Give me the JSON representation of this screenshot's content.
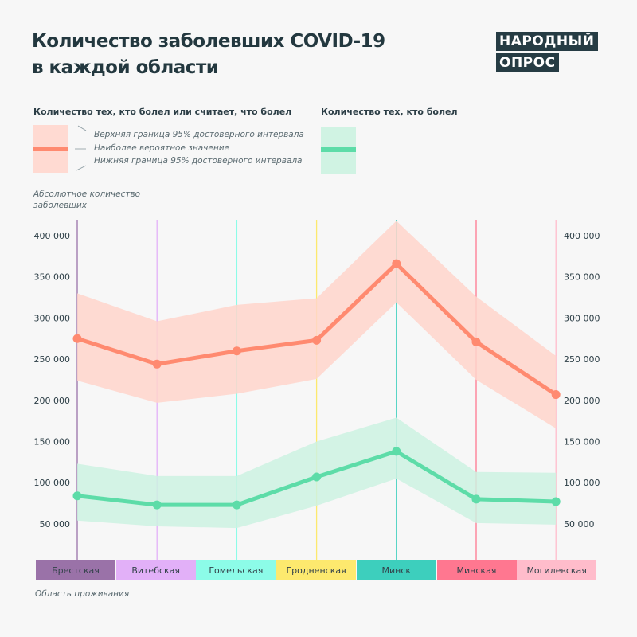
{
  "title_line1": "Количество заболевших COVID-19",
  "title_line2": "в каждой области",
  "logo": [
    "НАРОДНЫЙ",
    "ОПРОС"
  ],
  "legend": {
    "red_heading": "Количество тех, кто болел или считает, что болел",
    "green_heading": "Количество тех, кто болел",
    "upper": "Верхняя граница 95% достоверного интервала",
    "mid": "Наиболее вероятное значение",
    "lower": "Нижняя граница 95% достоверного интервала"
  },
  "colors": {
    "red_line": "#ff8a70",
    "red_band": "#ffd5cb",
    "green_line": "#5ddca8",
    "green_band": "#cdf2e2"
  },
  "chart_data": {
    "type": "line",
    "ylabel": "Абсолютное количество заболевших",
    "xlabel": "Область проживания",
    "ylim": [
      0,
      420000
    ],
    "yticks": [
      50000,
      100000,
      150000,
      200000,
      250000,
      300000,
      350000,
      400000
    ],
    "ytick_labels": [
      "50 000",
      "100 000",
      "150 000",
      "200 000",
      "250 000",
      "300 000",
      "350 000",
      "400 000"
    ],
    "categories": [
      "Брестская",
      "Витебская",
      "Гомельская",
      "Гродненская",
      "Минск",
      "Минская",
      "Могилевская"
    ],
    "category_colors": [
      "#9a72a8",
      "#e2b0f8",
      "#8cfce8",
      "#fde96e",
      "#3dcfbd",
      "#ff7790",
      "#ffbccb"
    ],
    "series": [
      {
        "name": "Количество тех, кто болел или считает, что болел",
        "values": [
          275000,
          244000,
          260000,
          273000,
          366000,
          271000,
          207000
        ],
        "upper": [
          330000,
          296000,
          316000,
          324000,
          418000,
          326000,
          254000
        ],
        "lower": [
          224000,
          197000,
          208000,
          226000,
          319000,
          225000,
          166000
        ]
      },
      {
        "name": "Количество тех, кто болел",
        "values": [
          84000,
          73000,
          73000,
          107000,
          138000,
          80000,
          77000
        ],
        "upper": [
          123000,
          108000,
          108000,
          150000,
          179000,
          113000,
          112000
        ],
        "lower": [
          54000,
          47000,
          45000,
          72000,
          105000,
          51000,
          49000
        ]
      }
    ]
  }
}
